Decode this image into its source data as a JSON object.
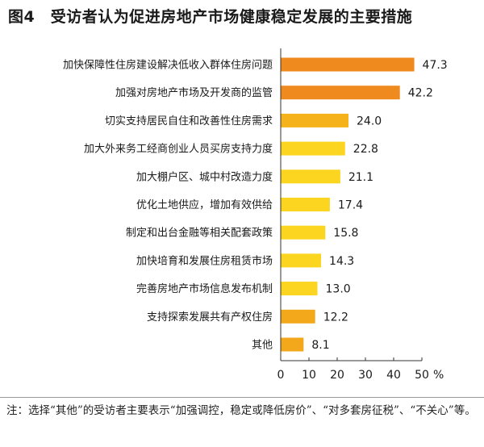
{
  "chart_data": {
    "type": "bar",
    "orientation": "horizontal",
    "title": "图4　受访者认为促进房地产市场健康稳定发展的主要措施",
    "categories": [
      "加快保障性住房建设解决低收入群体住房问题",
      "加强对房地产市场及开发商的监管",
      "切实支持居民自住和改善性住房需求",
      "加大外来务工经商创业人员买房支持力度",
      "加大棚户区、城中村改造力度",
      "优化土地供应，增加有效供给",
      "制定和出台金融等相关配套政策",
      "加快培育和发展住房租赁市场",
      "完善房地产市场信息发布机制",
      "支持探索发展共有产权住房",
      "其他"
    ],
    "values": [
      47.3,
      42.2,
      24.0,
      22.8,
      21.1,
      17.4,
      15.8,
      14.3,
      13.0,
      12.2,
      8.1
    ],
    "value_labels": [
      "47.3",
      "42.2",
      "24.0",
      "22.8",
      "21.1",
      "17.4",
      "15.8",
      "14.3",
      "13.0",
      "12.2",
      "8.1"
    ],
    "x_ticks": [
      "0",
      "10",
      "20",
      "30",
      "40",
      "50"
    ],
    "x_unit": "%",
    "xlim": [
      0,
      50
    ],
    "grid": false,
    "colors": {
      "top": "#ef8a1e",
      "mid_high": "#f6b21b",
      "mid": "#fbd51f",
      "low": "#f3a81b",
      "axis": "#333333"
    }
  },
  "note": "注：选择“其他”的受访者主要表示“加强调控，稳定或降低房价”、“对多套房征税”、“不关心”等。"
}
